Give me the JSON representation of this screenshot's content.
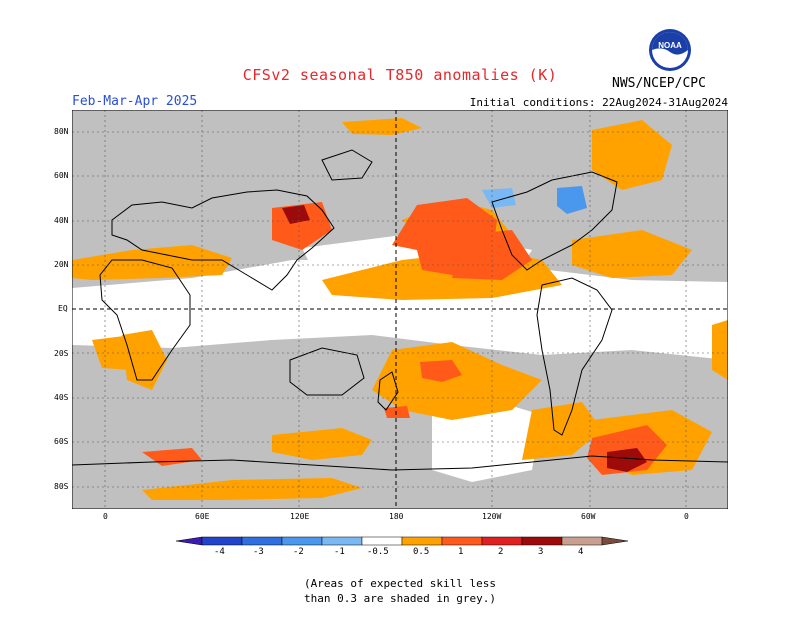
{
  "header": {
    "title": "CFSv2 seasonal T850 anomalies (K)",
    "period": "Feb-Mar-Apr 2025",
    "initial_conditions": "Initial conditions: 22Aug2024-31Aug2024",
    "organization": "NWS/NCEP/CPC",
    "logo_text": "NOAA"
  },
  "axes": {
    "lat_labels": [
      "80N",
      "60N",
      "40N",
      "20N",
      "EQ",
      "20S",
      "40S",
      "60S",
      "80S"
    ],
    "lon_labels": [
      "0",
      "60E",
      "120E",
      "180",
      "120W",
      "60W",
      "0"
    ]
  },
  "legend": {
    "labels": [
      "-4",
      "-3",
      "-2",
      "-1",
      "-0.5",
      "0.5",
      "1",
      "2",
      "3",
      "4"
    ],
    "colors": [
      "#3b1bb0",
      "#2244cc",
      "#2f70e0",
      "#4a98ee",
      "#7ab8f4",
      "#ffffff",
      "#ffa200",
      "#ff5a1a",
      "#e02020",
      "#9c0a0a",
      "#c9a090",
      "#7a4a3a"
    ]
  },
  "note": {
    "line1": "(Areas of expected skill less",
    "line2": "than 0.3 are shaded in grey.)"
  }
}
